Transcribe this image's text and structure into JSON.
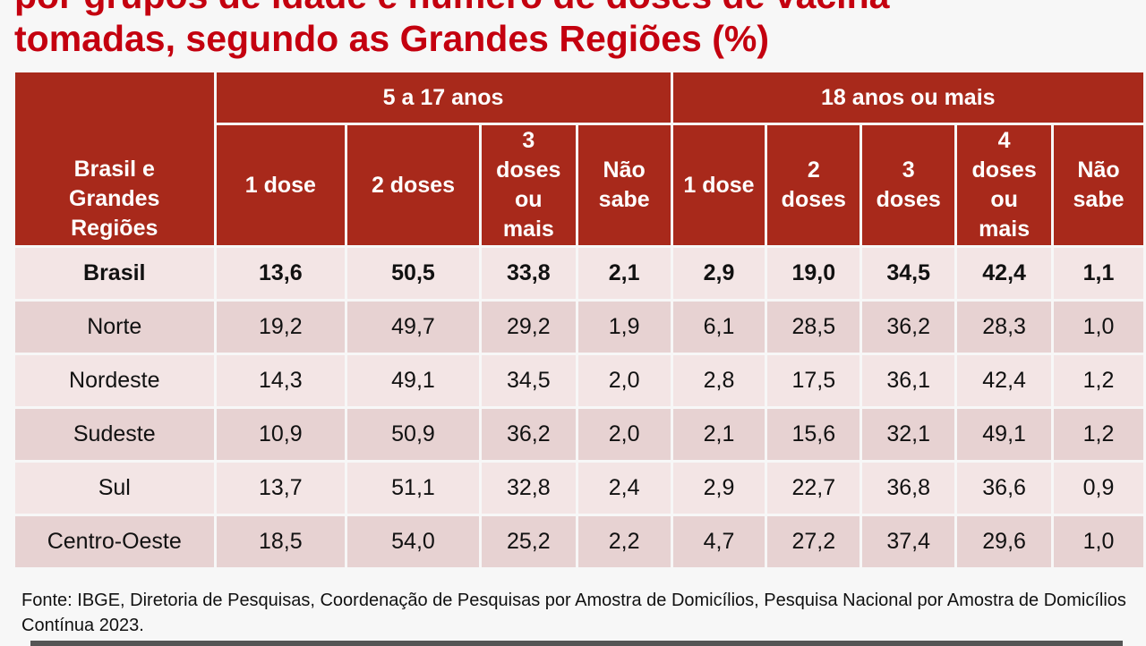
{
  "title": {
    "line1": "por grupos de idade e número de doses de vacina",
    "line2": "tomadas, segundo as Grandes Regiões (%)"
  },
  "table": {
    "region_header": "Brasil e Grandes Regiões",
    "groups": [
      "5 a 17 anos",
      "18 anos ou mais"
    ],
    "subheaders": [
      "1 dose",
      "2 doses",
      "3 doses ou mais",
      "Não sabe",
      "1 dose",
      "2 doses",
      "3 doses",
      "4 doses ou mais",
      "Não sabe"
    ],
    "rows": [
      {
        "region": "Brasil",
        "values": [
          "13,6",
          "50,5",
          "33,8",
          "2,1",
          "2,9",
          "19,0",
          "34,5",
          "42,4",
          "1,1"
        ]
      },
      {
        "region": "Norte",
        "values": [
          "19,2",
          "49,7",
          "29,2",
          "1,9",
          "6,1",
          "28,5",
          "36,2",
          "28,3",
          "1,0"
        ]
      },
      {
        "region": "Nordeste",
        "values": [
          "14,3",
          "49,1",
          "34,5",
          "2,0",
          "2,8",
          "17,5",
          "36,1",
          "42,4",
          "1,2"
        ]
      },
      {
        "region": "Sudeste",
        "values": [
          "10,9",
          "50,9",
          "36,2",
          "2,0",
          "2,1",
          "15,6",
          "32,1",
          "49,1",
          "1,2"
        ]
      },
      {
        "region": "Sul",
        "values": [
          "13,7",
          "51,1",
          "32,8",
          "2,4",
          "2,9",
          "22,7",
          "36,8",
          "36,6",
          "0,9"
        ]
      },
      {
        "region": "Centro-Oeste",
        "values": [
          "18,5",
          "54,0",
          "25,2",
          "2,2",
          "4,7",
          "27,2",
          "37,4",
          "29,6",
          "1,0"
        ]
      }
    ]
  },
  "source": "Fonte: IBGE, Diretoria de Pesquisas, Coordenação de Pesquisas por Amostra de Domicílios, Pesquisa Nacional por Amostra de Domicílios Contínua 2023."
}
